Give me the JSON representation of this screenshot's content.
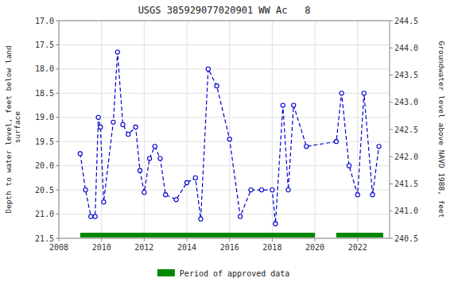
{
  "chart_data": {
    "type": "line",
    "title": "USGS 385929077020901 WW Ac   8",
    "ylabel": "Depth to water level, feet below land\n surface",
    "y2label": "Groundwater level above NAVD 1988, feet",
    "x": [
      2009.0,
      2009.25,
      2009.5,
      2009.7,
      2009.85,
      2009.95,
      2010.1,
      2010.55,
      2010.75,
      2011.0,
      2011.25,
      2011.6,
      2011.8,
      2012.0,
      2012.25,
      2012.5,
      2012.75,
      2013.0,
      2013.5,
      2014.0,
      2014.4,
      2014.65,
      2015.0,
      2015.4,
      2016.0,
      2016.5,
      2017.0,
      2017.5,
      2018.0,
      2018.15,
      2018.5,
      2018.75,
      2019.0,
      2019.6,
      2021.0,
      2021.25,
      2021.6,
      2022.0,
      2022.3,
      2022.7,
      2023.0
    ],
    "series": [
      {
        "type": "line",
        "color": "#0000cc",
        "marker": "circle",
        "line_style": "dashed",
        "values": [
          19.75,
          20.5,
          21.05,
          21.05,
          19.0,
          19.2,
          20.75,
          19.1,
          17.65,
          19.15,
          19.35,
          19.2,
          20.1,
          20.55,
          19.85,
          19.6,
          19.85,
          20.6,
          20.7,
          20.35,
          20.25,
          21.1,
          18.0,
          18.35,
          19.45,
          21.05,
          20.5,
          20.5,
          20.5,
          21.2,
          18.75,
          20.5,
          18.75,
          19.6,
          19.5,
          18.5,
          20.0,
          20.6,
          18.5,
          20.6,
          19.6
        ]
      },
      {
        "type": "span",
        "name": "Period of approved data",
        "color": "#008800",
        "x": [
          [
            2009.0,
            2020.0
          ],
          [
            2021.0,
            2023.2
          ]
        ]
      }
    ],
    "xlim": [
      2008.0,
      2023.5
    ],
    "xticks": [
      2008,
      2010,
      2012,
      2014,
      2016,
      2018,
      2020,
      2022
    ],
    "ylim": [
      21.5,
      17.0
    ],
    "yticks": [
      {
        "value": 17.0,
        "label": "17.0"
      },
      17.5,
      {
        "value": 18.0,
        "label": "18.0"
      },
      18.5,
      {
        "value": 19.0,
        "label": "19.0"
      },
      19.5,
      {
        "value": 20.0,
        "label": "20.0"
      },
      20.5,
      {
        "value": 21.0,
        "label": "21.0"
      },
      21.5
    ],
    "y2lim": [
      240.5,
      244.5
    ],
    "y2ticks": [
      240.5,
      {
        "value": 241.0,
        "label": "241.0"
      },
      241.5,
      {
        "value": 242.0,
        "label": "242.0"
      },
      242.5,
      {
        "value": 243.0,
        "label": "243.0"
      },
      243.5,
      {
        "value": 244.0,
        "label": "244.0"
      },
      244.5
    ],
    "grid": true,
    "legend": "bottom"
  }
}
